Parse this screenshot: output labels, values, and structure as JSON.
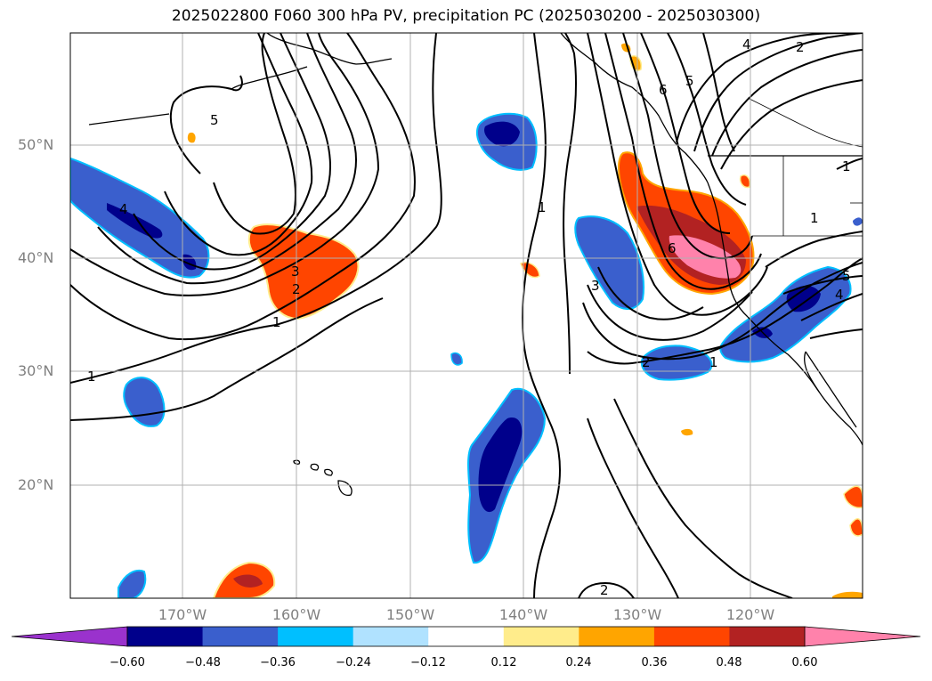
{
  "title": "2025022800 F060 300 hPa PV, precipitation PC (2025030200 - 2025030300)",
  "map": {
    "latitude_labels": [
      "50°N",
      "40°N",
      "30°N",
      "20°N"
    ],
    "longitude_labels": [
      "170°W",
      "160°W",
      "150°W",
      "140°W",
      "130°W",
      "120°W"
    ],
    "contour_labels": [
      "1",
      "2",
      "3",
      "4",
      "5",
      "6"
    ],
    "colors": {
      "ocean": "#ffffff",
      "gridline": "#b0b0b0",
      "contour": "#000000",
      "coastline": "#000000"
    }
  },
  "colorbar": {
    "tick_labels": [
      "−0.60",
      "−0.48",
      "−0.36",
      "−0.24",
      "−0.12",
      "0.12",
      "0.24",
      "0.36",
      "0.48",
      "0.60"
    ],
    "colors": [
      "#9a32cd",
      "#00008b",
      "#3a5fcd",
      "#00bfff",
      "#b0e2ff",
      "#ffffff",
      "#ffec8b",
      "#ffa500",
      "#ff4500",
      "#b22222",
      "#ff82ab"
    ]
  }
}
